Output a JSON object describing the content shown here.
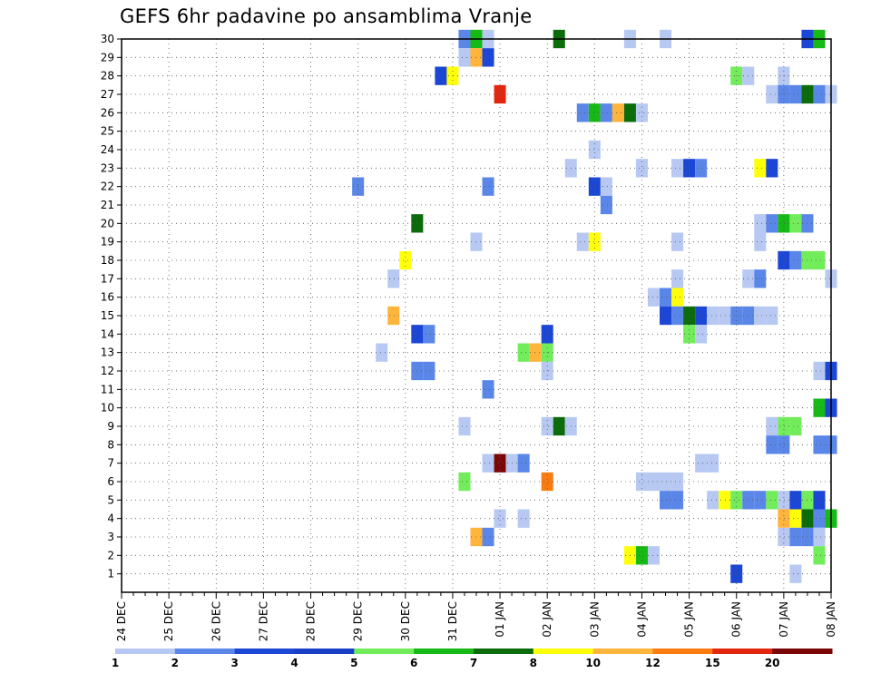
{
  "chart_data": {
    "type": "heatmap",
    "title": "GEFS 6hr padavine po ansamblima Vranje",
    "x_categories": [
      "24 DEC",
      "25 DEC",
      "26 DEC",
      "27 DEC",
      "28 DEC",
      "29 DEC",
      "30 DEC",
      "31 DEC",
      "01 JAN",
      "02 JAN",
      "03 JAN",
      "04 JAN",
      "05 JAN",
      "06 JAN",
      "07 JAN",
      "08 JAN"
    ],
    "x_range_hours": [
      0,
      360
    ],
    "y_range": [
      0,
      30
    ],
    "y_ticks": [
      1,
      2,
      3,
      4,
      5,
      6,
      7,
      8,
      9,
      10,
      11,
      12,
      13,
      14,
      15,
      16,
      17,
      18,
      19,
      20,
      21,
      22,
      23,
      24,
      25,
      26,
      27,
      28,
      29,
      30
    ],
    "grid": true,
    "colorbar": {
      "labels": [
        "1",
        "2",
        "3",
        "4",
        "5",
        "6",
        "7",
        "8",
        "10",
        "12",
        "15",
        "20"
      ],
      "colors": [
        "#b7c9f2",
        "#5a86e8",
        "#1b46d6",
        "#1a3fc7",
        "#72ec5a",
        "#16b916",
        "#0c6c0c",
        "#ffff0a",
        "#ffb43c",
        "#f97b12",
        "#e3270f",
        "#7b0606"
      ]
    },
    "cells": [
      {
        "h": 174,
        "m": 30,
        "c": 2
      },
      {
        "h": 180,
        "m": 30,
        "c": 6
      },
      {
        "h": 186,
        "m": 30,
        "c": 1
      },
      {
        "h": 222,
        "m": 30,
        "c": 7
      },
      {
        "h": 258,
        "m": 30,
        "c": 1
      },
      {
        "h": 276,
        "m": 30,
        "c": 1
      },
      {
        "h": 348,
        "m": 30,
        "c": 3
      },
      {
        "h": 354,
        "m": 30,
        "c": 6
      },
      {
        "h": 174,
        "m": 29,
        "c": 1
      },
      {
        "h": 180,
        "m": 29,
        "c": 10
      },
      {
        "h": 186,
        "m": 29,
        "c": 3
      },
      {
        "h": 162,
        "m": 28,
        "c": 3
      },
      {
        "h": 168,
        "m": 28,
        "c": 8
      },
      {
        "h": 312,
        "m": 28,
        "c": 5
      },
      {
        "h": 318,
        "m": 28,
        "c": 1
      },
      {
        "h": 336,
        "m": 28,
        "c": 1
      },
      {
        "h": 192,
        "m": 27,
        "c": 15
      },
      {
        "h": 330,
        "m": 27,
        "c": 1
      },
      {
        "h": 336,
        "m": 27,
        "c": 2
      },
      {
        "h": 342,
        "m": 27,
        "c": 2
      },
      {
        "h": 348,
        "m": 27,
        "c": 7
      },
      {
        "h": 354,
        "m": 27,
        "c": 2
      },
      {
        "h": 360,
        "m": 27,
        "c": 1
      },
      {
        "h": 234,
        "m": 26,
        "c": 2
      },
      {
        "h": 240,
        "m": 26,
        "c": 6
      },
      {
        "h": 246,
        "m": 26,
        "c": 2
      },
      {
        "h": 252,
        "m": 26,
        "c": 10
      },
      {
        "h": 258,
        "m": 26,
        "c": 7
      },
      {
        "h": 264,
        "m": 26,
        "c": 1
      },
      {
        "h": 240,
        "m": 24,
        "c": 1
      },
      {
        "h": 228,
        "m": 23,
        "c": 1
      },
      {
        "h": 264,
        "m": 23,
        "c": 1
      },
      {
        "h": 282,
        "m": 23,
        "c": 1
      },
      {
        "h": 288,
        "m": 23,
        "c": 3
      },
      {
        "h": 294,
        "m": 23,
        "c": 2
      },
      {
        "h": 324,
        "m": 23,
        "c": 8
      },
      {
        "h": 330,
        "m": 23,
        "c": 3
      },
      {
        "h": 120,
        "m": 22,
        "c": 2
      },
      {
        "h": 186,
        "m": 22,
        "c": 2
      },
      {
        "h": 240,
        "m": 22,
        "c": 3
      },
      {
        "h": 246,
        "m": 22,
        "c": 1
      },
      {
        "h": 246,
        "m": 21,
        "c": 2
      },
      {
        "h": 150,
        "m": 20,
        "c": 7
      },
      {
        "h": 324,
        "m": 20,
        "c": 1
      },
      {
        "h": 330,
        "m": 20,
        "c": 2
      },
      {
        "h": 336,
        "m": 20,
        "c": 6
      },
      {
        "h": 342,
        "m": 20,
        "c": 5
      },
      {
        "h": 348,
        "m": 20,
        "c": 2
      },
      {
        "h": 180,
        "m": 19,
        "c": 1
      },
      {
        "h": 234,
        "m": 19,
        "c": 1
      },
      {
        "h": 240,
        "m": 19,
        "c": 8
      },
      {
        "h": 282,
        "m": 19,
        "c": 1
      },
      {
        "h": 324,
        "m": 19,
        "c": 1
      },
      {
        "h": 144,
        "m": 18,
        "c": 8
      },
      {
        "h": 336,
        "m": 18,
        "c": 3
      },
      {
        "h": 342,
        "m": 18,
        "c": 2
      },
      {
        "h": 348,
        "m": 18,
        "c": 5
      },
      {
        "h": 354,
        "m": 18,
        "c": 5
      },
      {
        "h": 138,
        "m": 17,
        "c": 1
      },
      {
        "h": 282,
        "m": 17,
        "c": 1
      },
      {
        "h": 318,
        "m": 17,
        "c": 1
      },
      {
        "h": 324,
        "m": 17,
        "c": 2
      },
      {
        "h": 360,
        "m": 17,
        "c": 1
      },
      {
        "h": 270,
        "m": 16,
        "c": 1
      },
      {
        "h": 276,
        "m": 16,
        "c": 2
      },
      {
        "h": 282,
        "m": 16,
        "c": 8
      },
      {
        "h": 138,
        "m": 15,
        "c": 10
      },
      {
        "h": 276,
        "m": 15,
        "c": 3
      },
      {
        "h": 282,
        "m": 15,
        "c": 2
      },
      {
        "h": 288,
        "m": 15,
        "c": 7
      },
      {
        "h": 294,
        "m": 15,
        "c": 3
      },
      {
        "h": 300,
        "m": 15,
        "c": 1
      },
      {
        "h": 306,
        "m": 15,
        "c": 1
      },
      {
        "h": 312,
        "m": 15,
        "c": 2
      },
      {
        "h": 318,
        "m": 15,
        "c": 2
      },
      {
        "h": 324,
        "m": 15,
        "c": 1
      },
      {
        "h": 330,
        "m": 15,
        "c": 1
      },
      {
        "h": 150,
        "m": 14,
        "c": 3
      },
      {
        "h": 156,
        "m": 14,
        "c": 2
      },
      {
        "h": 216,
        "m": 14,
        "c": 3
      },
      {
        "h": 288,
        "m": 14,
        "c": 5
      },
      {
        "h": 294,
        "m": 14,
        "c": 1
      },
      {
        "h": 132,
        "m": 13,
        "c": 1
      },
      {
        "h": 204,
        "m": 13,
        "c": 5
      },
      {
        "h": 210,
        "m": 13,
        "c": 10
      },
      {
        "h": 216,
        "m": 13,
        "c": 5
      },
      {
        "h": 150,
        "m": 12,
        "c": 2
      },
      {
        "h": 156,
        "m": 12,
        "c": 2
      },
      {
        "h": 216,
        "m": 12,
        "c": 1
      },
      {
        "h": 354,
        "m": 12,
        "c": 1
      },
      {
        "h": 360,
        "m": 12,
        "c": 3
      },
      {
        "h": 186,
        "m": 11,
        "c": 2
      },
      {
        "h": 354,
        "m": 10,
        "c": 6
      },
      {
        "h": 360,
        "m": 10,
        "c": 3
      },
      {
        "h": 174,
        "m": 9,
        "c": 1
      },
      {
        "h": 216,
        "m": 9,
        "c": 1
      },
      {
        "h": 222,
        "m": 9,
        "c": 7
      },
      {
        "h": 228,
        "m": 9,
        "c": 1
      },
      {
        "h": 330,
        "m": 9,
        "c": 1
      },
      {
        "h": 336,
        "m": 9,
        "c": 5
      },
      {
        "h": 342,
        "m": 9,
        "c": 5
      },
      {
        "h": 330,
        "m": 8,
        "c": 2
      },
      {
        "h": 336,
        "m": 8,
        "c": 2
      },
      {
        "h": 354,
        "m": 8,
        "c": 2
      },
      {
        "h": 360,
        "m": 8,
        "c": 2
      },
      {
        "h": 186,
        "m": 7,
        "c": 1
      },
      {
        "h": 192,
        "m": 7,
        "c": 20
      },
      {
        "h": 198,
        "m": 7,
        "c": 1
      },
      {
        "h": 204,
        "m": 7,
        "c": 2
      },
      {
        "h": 294,
        "m": 7,
        "c": 1
      },
      {
        "h": 300,
        "m": 7,
        "c": 1
      },
      {
        "h": 174,
        "m": 6,
        "c": 5
      },
      {
        "h": 216,
        "m": 6,
        "c": 12
      },
      {
        "h": 264,
        "m": 6,
        "c": 1
      },
      {
        "h": 270,
        "m": 6,
        "c": 1
      },
      {
        "h": 276,
        "m": 6,
        "c": 1
      },
      {
        "h": 282,
        "m": 6,
        "c": 1
      },
      {
        "h": 276,
        "m": 5,
        "c": 2
      },
      {
        "h": 282,
        "m": 5,
        "c": 2
      },
      {
        "h": 300,
        "m": 5,
        "c": 1
      },
      {
        "h": 306,
        "m": 5,
        "c": 8
      },
      {
        "h": 312,
        "m": 5,
        "c": 5
      },
      {
        "h": 318,
        "m": 5,
        "c": 2
      },
      {
        "h": 324,
        "m": 5,
        "c": 2
      },
      {
        "h": 330,
        "m": 5,
        "c": 5
      },
      {
        "h": 336,
        "m": 5,
        "c": 1
      },
      {
        "h": 342,
        "m": 5,
        "c": 3
      },
      {
        "h": 348,
        "m": 5,
        "c": 5
      },
      {
        "h": 354,
        "m": 5,
        "c": 3
      },
      {
        "h": 192,
        "m": 4,
        "c": 1
      },
      {
        "h": 204,
        "m": 4,
        "c": 1
      },
      {
        "h": 336,
        "m": 4,
        "c": 10
      },
      {
        "h": 342,
        "m": 4,
        "c": 8
      },
      {
        "h": 348,
        "m": 4,
        "c": 7
      },
      {
        "h": 354,
        "m": 4,
        "c": 2
      },
      {
        "h": 360,
        "m": 4,
        "c": 6
      },
      {
        "h": 180,
        "m": 3,
        "c": 10
      },
      {
        "h": 186,
        "m": 3,
        "c": 2
      },
      {
        "h": 336,
        "m": 3,
        "c": 1
      },
      {
        "h": 342,
        "m": 3,
        "c": 2
      },
      {
        "h": 348,
        "m": 3,
        "c": 2
      },
      {
        "h": 354,
        "m": 3,
        "c": 1
      },
      {
        "h": 258,
        "m": 2,
        "c": 8
      },
      {
        "h": 264,
        "m": 2,
        "c": 6
      },
      {
        "h": 270,
        "m": 2,
        "c": 1
      },
      {
        "h": 354,
        "m": 2,
        "c": 5
      },
      {
        "h": 312,
        "m": 1,
        "c": 3
      },
      {
        "h": 342,
        "m": 1,
        "c": 1
      }
    ]
  }
}
